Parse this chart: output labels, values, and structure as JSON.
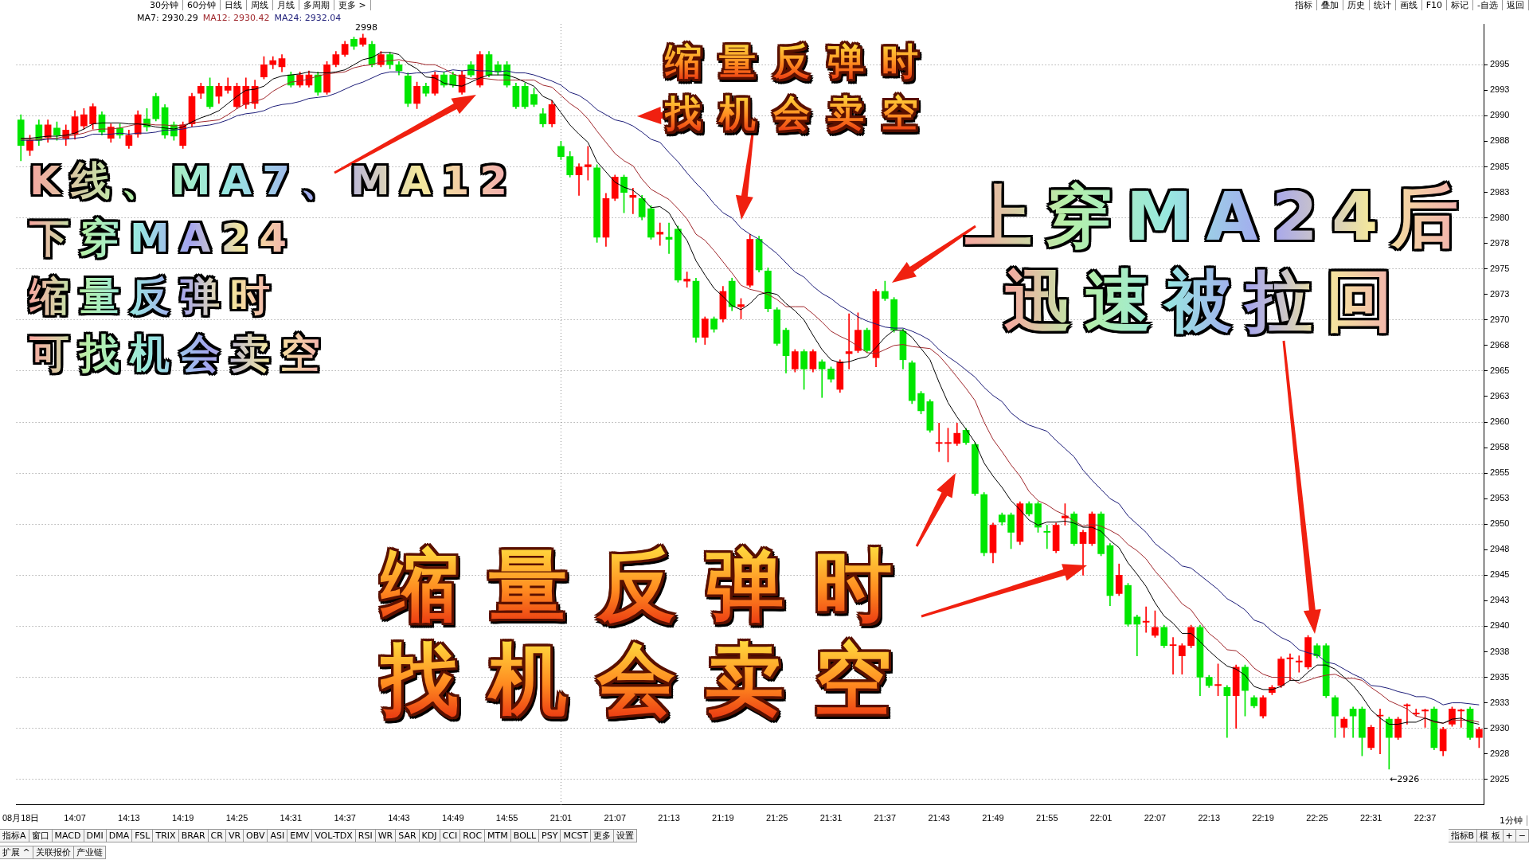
{
  "chart_data": {
    "type": "candlestick",
    "categories": [
      "08月18日",
      null,
      null,
      null,
      null,
      null,
      "14:07",
      null,
      null,
      null,
      null,
      null,
      "14:13",
      null,
      null,
      null,
      null,
      null,
      "14:19",
      null,
      null,
      null,
      null,
      null,
      "14:25",
      null,
      null,
      null,
      null,
      null,
      "14:31",
      null,
      null,
      null,
      null,
      null,
      "14:37",
      null,
      null,
      null,
      null,
      null,
      "14:43",
      null,
      null,
      null,
      null,
      null,
      "14:49",
      null,
      null,
      null,
      null,
      null,
      "14:55",
      null,
      null,
      null,
      null,
      null,
      "21:01",
      null,
      null,
      null,
      null,
      null,
      "21:07",
      null,
      null,
      null,
      null,
      null,
      "21:13",
      null,
      null,
      null,
      null,
      null,
      "21:19",
      null,
      null,
      null,
      null,
      null,
      "21:25",
      null,
      null,
      null,
      null,
      null,
      "21:31",
      null,
      null,
      null,
      null,
      null,
      "21:37",
      null,
      null,
      null,
      null,
      null,
      "21:43",
      null,
      null,
      null,
      null,
      null,
      "21:49",
      null,
      null,
      null,
      null,
      null,
      "21:55",
      null,
      null,
      null,
      null,
      null,
      "22:01",
      null,
      null,
      null,
      null,
      null,
      "22:07",
      null,
      null,
      null,
      null,
      null,
      "22:13",
      null,
      null,
      null,
      null,
      null,
      "22:19",
      null,
      null,
      null,
      null,
      null,
      "22:25",
      null,
      null,
      null,
      null,
      null,
      "22:31",
      null,
      null,
      null,
      null,
      null,
      "22:37",
      null,
      null,
      null,
      null,
      null,
      null
    ],
    "ohlc": [
      [
        2989.6,
        2990.1,
        2985.6,
        2987.1
      ],
      [
        2986.6,
        2988.1,
        2986.1,
        2987.6
      ],
      [
        2989.1,
        2989.6,
        2987.1,
        2987.6
      ],
      [
        2987.9,
        2989.6,
        2987.4,
        2989.1
      ],
      [
        2988.8,
        2989.4,
        2987.6,
        2988.1
      ],
      [
        2987.8,
        2989.1,
        2987.1,
        2988.6
      ],
      [
        2988.2,
        2990.5,
        2987.7,
        2989.9
      ],
      [
        2989.0,
        2990.7,
        2988.7,
        2990.1
      ],
      [
        2989.2,
        2991.2,
        2988.7,
        2990.9
      ],
      [
        2990.1,
        2990.4,
        2988.1,
        2988.4
      ],
      [
        2987.8,
        2989.2,
        2987.4,
        2988.9
      ],
      [
        2988.8,
        2989.2,
        2987.8,
        2988.1
      ],
      [
        2987.1,
        2988.6,
        2986.8,
        2988.1
      ],
      [
        2988.2,
        2990.5,
        2987.9,
        2990.1
      ],
      [
        2989.7,
        2990.7,
        2988.5,
        2988.9
      ],
      [
        2991.9,
        2992.2,
        2989.5,
        2989.7
      ],
      [
        2990.8,
        2991.1,
        2987.8,
        2988.1
      ],
      [
        2989.1,
        2989.4,
        2987.6,
        2988.0
      ],
      [
        2987.1,
        2989.4,
        2986.8,
        2989.1
      ],
      [
        2989.2,
        2992.2,
        2988.9,
        2991.9
      ],
      [
        2992.2,
        2993.2,
        2991.7,
        2992.9
      ],
      [
        2992.9,
        2993.7,
        2990.7,
        2990.9
      ],
      [
        2991.9,
        2993.2,
        2991.2,
        2992.9
      ],
      [
        2992.5,
        2993.7,
        2992.2,
        2992.9
      ],
      [
        2990.9,
        2993.2,
        2990.7,
        2992.9
      ],
      [
        2991.1,
        2993.7,
        2990.7,
        2992.9
      ],
      [
        2991.2,
        2993.5,
        2990.7,
        2992.9
      ],
      [
        2993.8,
        2995.8,
        2993.6,
        2995.0
      ],
      [
        2995.0,
        2995.8,
        2994.6,
        2995.4
      ],
      [
        2994.8,
        2996.0,
        2994.3,
        2995.6
      ],
      [
        2994.0,
        2994.3,
        2992.8,
        2993.0
      ],
      [
        2993.0,
        2994.3,
        2992.8,
        2994.0
      ],
      [
        2993.0,
        2994.4,
        2992.8,
        2994.0
      ],
      [
        2994.0,
        2994.3,
        2992.0,
        2992.3
      ],
      [
        2992.3,
        2995.3,
        2992.1,
        2995.0
      ],
      [
        2995.0,
        2996.3,
        2994.8,
        2996.0
      ],
      [
        2996.0,
        2997.3,
        2995.8,
        2997.0
      ],
      [
        2997.5,
        2997.7,
        2996.5,
        2996.8
      ],
      [
        2997.0,
        2998,
        2996.8,
        2997.6
      ],
      [
        2997.0,
        2997.3,
        2994.8,
        2995.0
      ],
      [
        2995.0,
        2996.3,
        2994.8,
        2996.0
      ],
      [
        2996.0,
        2996.2,
        2994.6,
        2995.0
      ],
      [
        2995.0,
        2995.3,
        2994.0,
        2994.4
      ],
      [
        2993.9,
        2994.2,
        2990.9,
        2991.2
      ],
      [
        2991.2,
        2993.3,
        2990.7,
        2992.9
      ],
      [
        2992.9,
        2993.2,
        2991.9,
        2992.2
      ],
      [
        2992.2,
        2994.3,
        2992.0,
        2994.0
      ],
      [
        2994.0,
        2994.3,
        2992.8,
        2993.0
      ],
      [
        2994.0,
        2994.3,
        2992.8,
        2993.0
      ],
      [
        2992.3,
        2994.4,
        2992.1,
        2994.0
      ],
      [
        2995.0,
        2995.3,
        2993.8,
        2994.0
      ],
      [
        2993.0,
        2996.3,
        2992.8,
        2996.0
      ],
      [
        2996.0,
        2996.3,
        2993.8,
        2994.0
      ],
      [
        2995.0,
        2995.3,
        2994.0,
        2994.3
      ],
      [
        2995.0,
        2995.3,
        2992.8,
        2993.0
      ],
      [
        2992.9,
        2993.2,
        2990.7,
        2990.9
      ],
      [
        2992.9,
        2993.2,
        2990.7,
        2990.9
      ],
      [
        2992.1,
        2992.7,
        2990.9,
        2991.1
      ],
      [
        2990.2,
        2990.7,
        2988.9,
        2989.2
      ],
      [
        2989.2,
        2991.5,
        2988.9,
        2991.1
      ],
      [
        2987.0,
        2987.5,
        2985.7,
        2986.0
      ],
      [
        2986.0,
        2986.5,
        2984.0,
        2984.2
      ],
      [
        2984.2,
        2985.3,
        2982.2,
        2985.0
      ],
      [
        2985.0,
        2987.0,
        2983.7,
        2985.2
      ],
      [
        2984.9,
        2985.2,
        2977.6,
        2978.1
      ],
      [
        2978.1,
        2982.4,
        2977.2,
        2981.9
      ],
      [
        2981.9,
        2984.2,
        2981.7,
        2984.0
      ],
      [
        2984.0,
        2984.2,
        2980.5,
        2982.5
      ],
      [
        2982.0,
        2982.9,
        2980.4,
        2982.2
      ],
      [
        2981.9,
        2982.2,
        2979.8,
        2980.1
      ],
      [
        2980.9,
        2981.2,
        2977.9,
        2978.1
      ],
      [
        2978.4,
        2979.5,
        2977.3,
        2978.6
      ],
      [
        2978.1,
        2979.5,
        2976.5,
        2977.9
      ],
      [
        2978.9,
        2979.2,
        2973.7,
        2973.9
      ],
      [
        2973.8,
        2974.7,
        2973.2,
        2974.0
      ],
      [
        2973.8,
        2974.1,
        2967.8,
        2968.3
      ],
      [
        2968.3,
        2970.3,
        2967.6,
        2970.1
      ],
      [
        2970.1,
        2970.3,
        2968.8,
        2969.1
      ],
      [
        2970.1,
        2973.3,
        2969.8,
        2972.8
      ],
      [
        2973.8,
        2974.1,
        2970.9,
        2971.3
      ],
      [
        2971.3,
        2972.1,
        2970.1,
        2971.5
      ],
      [
        2973.4,
        2978.4,
        2973.2,
        2977.9
      ],
      [
        2977.9,
        2978.2,
        2974.7,
        2974.9
      ],
      [
        2974.8,
        2975.1,
        2970.8,
        2971.1
      ],
      [
        2971.0,
        2971.2,
        2967.5,
        2967.7
      ],
      [
        2969.0,
        2969.2,
        2964.8,
        2966.5
      ],
      [
        2965.2,
        2967.1,
        2964.9,
        2966.9
      ],
      [
        2966.9,
        2967.1,
        2963.2,
        2965.2
      ],
      [
        2965.2,
        2967.1,
        2964.9,
        2966.9
      ],
      [
        2965.9,
        2966.1,
        2962.4,
        2965.2
      ],
      [
        2965.2,
        2965.4,
        2963.9,
        2964.2
      ],
      [
        2963.2,
        2966.1,
        2962.9,
        2965.9
      ],
      [
        2966.7,
        2970.6,
        2965.2,
        2966.9
      ],
      [
        2967.0,
        2970.7,
        2966.8,
        2969.0
      ],
      [
        2969.0,
        2969.2,
        2966.8,
        2967.0
      ],
      [
        2966.3,
        2973.0,
        2965.4,
        2972.8
      ],
      [
        2972.8,
        2973.8,
        2971.9,
        2972.1
      ],
      [
        2972.0,
        2972.2,
        2968.8,
        2969.0
      ],
      [
        2968.9,
        2969.1,
        2965.2,
        2966.1
      ],
      [
        2965.8,
        2966.0,
        2961.8,
        2962.1
      ],
      [
        2962.8,
        2963.0,
        2960.8,
        2961.1
      ],
      [
        2962.0,
        2962.2,
        2959.0,
        2959.2
      ],
      [
        2957.9,
        2959.9,
        2957.1,
        2958.0
      ],
      [
        2957.9,
        2959.4,
        2956.1,
        2958.0
      ],
      [
        2957.9,
        2959.9,
        2957.7,
        2958.9
      ],
      [
        2959.2,
        2959.4,
        2957.8,
        2958.0
      ],
      [
        2957.8,
        2958.0,
        2952.8,
        2953.0
      ],
      [
        2952.9,
        2953.1,
        2946.9,
        2947.2
      ],
      [
        2947.2,
        2950.1,
        2946.2,
        2949.9
      ],
      [
        2950.9,
        2951.1,
        2949.9,
        2950.2
      ],
      [
        2950.9,
        2951.1,
        2947.6,
        2949.2
      ],
      [
        2948.3,
        2952.2,
        2948.0,
        2952.0
      ],
      [
        2952.0,
        2952.2,
        2950.8,
        2951.0
      ],
      [
        2952.0,
        2952.2,
        2949.2,
        2949.7
      ],
      [
        2949.3,
        2949.9,
        2947.6,
        2949.2
      ],
      [
        2947.4,
        2950.1,
        2947.2,
        2949.9
      ],
      [
        2950.6,
        2952.0,
        2949.9,
        2950.8
      ],
      [
        2951.0,
        2951.2,
        2947.9,
        2948.1
      ],
      [
        2948.1,
        2949.4,
        2945.0,
        2949.2
      ],
      [
        2948.1,
        2951.2,
        2947.9,
        2951.0
      ],
      [
        2951.0,
        2951.2,
        2946.9,
        2947.1
      ],
      [
        2947.9,
        2948.1,
        2942.0,
        2943.0
      ],
      [
        2943.2,
        2946.1,
        2943.0,
        2945.0
      ],
      [
        2944.0,
        2944.2,
        2940.0,
        2940.2
      ],
      [
        2940.9,
        2941.1,
        2937.1,
        2940.2
      ],
      [
        2940.4,
        2941.9,
        2939.4,
        2940.5
      ],
      [
        2939.1,
        2941.5,
        2938.9,
        2939.9
      ],
      [
        2939.9,
        2940.1,
        2937.9,
        2938.1
      ],
      [
        2938.1,
        2938.9,
        2935.3,
        2938.2
      ],
      [
        2937.1,
        2938.3,
        2935.3,
        2938.1
      ],
      [
        2938.1,
        2940.1,
        2937.9,
        2939.9
      ],
      [
        2939.9,
        2940.1,
        2933.2,
        2935.0
      ],
      [
        2935.0,
        2935.2,
        2934.0,
        2934.2
      ],
      [
        2934.2,
        2936.3,
        2933.2,
        2934.3
      ],
      [
        2934.0,
        2934.2,
        2929.1,
        2933.2
      ],
      [
        2933.2,
        2936.2,
        2930.0,
        2936.0
      ],
      [
        2936.0,
        2936.2,
        2931.2,
        2933.7
      ],
      [
        2933.0,
        2933.2,
        2932.0,
        2932.2
      ],
      [
        2931.2,
        2933.2,
        2931.0,
        2933.0
      ],
      [
        2933.5,
        2934.2,
        2933.3,
        2934.0
      ],
      [
        2934.2,
        2937.0,
        2934.0,
        2936.8
      ],
      [
        2936.8,
        2937.3,
        2934.7,
        2936.9
      ],
      [
        2936.5,
        2937.1,
        2935.5,
        2936.6
      ],
      [
        2936.0,
        2939.1,
        2935.8,
        2938.9
      ],
      [
        2938.1,
        2938.3,
        2936.9,
        2937.1
      ],
      [
        2938.1,
        2938.3,
        2933.0,
        2933.2
      ],
      [
        2933.0,
        2933.2,
        2929.1,
        2931.2
      ],
      [
        2930.1,
        2931.1,
        2929.1,
        2930.9
      ],
      [
        2931.9,
        2932.1,
        2929.1,
        2931.2
      ],
      [
        2931.9,
        2932.1,
        2927.3,
        2929.1
      ],
      [
        2928.1,
        2930.3,
        2927.9,
        2930.1
      ],
      [
        2931.2,
        2931.9,
        2927.5,
        2931.3
      ],
      [
        2930.9,
        2931.1,
        2926.0,
        2929.1
      ],
      [
        2929.1,
        2931.1,
        2928.9,
        2930.9
      ],
      [
        2932.2,
        2932.4,
        2930.4,
        2932.3
      ],
      [
        2931.4,
        2931.9,
        2931.2,
        2931.5
      ],
      [
        2931.7,
        2931.9,
        2930.1,
        2931.8
      ],
      [
        2931.9,
        2932.1,
        2927.9,
        2928.1
      ],
      [
        2927.8,
        2930.1,
        2927.3,
        2929.9
      ],
      [
        2930.4,
        2932.1,
        2930.2,
        2931.9
      ],
      [
        2931.7,
        2931.9,
        2930.1,
        2931.8
      ],
      [
        2931.9,
        2932.1,
        2928.9,
        2929.1
      ],
      [
        2929.1,
        2930.1,
        2928.1,
        2929.9
      ]
    ],
    "colors": [
      "#00e600",
      "#ff0000",
      "#00e600",
      "#ff0000",
      "#00e600",
      "#ff0000",
      "#ff0000",
      "#ff0000",
      "#ff0000",
      "#00e600",
      "#ff0000",
      "#00e600",
      "#ff0000",
      "#ff0000",
      "#00e600",
      "#00e600",
      "#00e600",
      "#00e600",
      "#ff0000",
      "#ff0000",
      "#ff0000",
      "#00e600",
      "#ff0000",
      "#ff0000",
      "#ff0000",
      "#ff0000",
      "#ff0000",
      "#ff0000",
      "#ff0000",
      "#ff0000",
      "#00e600",
      "#ff0000",
      "#ff0000",
      "#00e600",
      "#ff0000",
      "#ff0000",
      "#ff0000",
      "#00e600",
      "#ff0000",
      "#00e600",
      "#ff0000",
      "#00e600",
      "#00e600",
      "#00e600",
      "#ff0000",
      "#00e600",
      "#ff0000",
      "#00e600",
      "#00e600",
      "#ff0000",
      "#00e600",
      "#ff0000",
      "#00e600",
      "#00e600",
      "#00e600",
      "#00e600",
      "#00e600",
      "#00e600",
      "#00e600",
      "#ff0000",
      "#00e600",
      "#00e600",
      "#ff0000",
      "#ff0000",
      "#00e600",
      "#ff0000",
      "#ff0000",
      "#00e600",
      "#ff0000",
      "#00e600",
      "#00e600",
      "#ff0000",
      "#00e600",
      "#00e600",
      "#ff0000",
      "#00e600",
      "#ff0000",
      "#00e600",
      "#ff0000",
      "#00e600",
      "#ff0000",
      "#ff0000",
      "#00e600",
      "#00e600",
      "#00e600",
      "#00e600",
      "#ff0000",
      "#00e600",
      "#ff0000",
      "#00e600",
      "#00e600",
      "#ff0000",
      "#ff0000",
      "#ff0000",
      "#00e600",
      "#ff0000",
      "#00e600",
      "#00e600",
      "#00e600",
      "#00e600",
      "#00e600",
      "#00e600",
      "#ff0000",
      "#ff0000",
      "#ff0000",
      "#00e600",
      "#00e600",
      "#00e600",
      "#ff0000",
      "#00e600",
      "#00e600",
      "#ff0000",
      "#00e600",
      "#00e600",
      "#00e600",
      "#ff0000",
      "#ff0000",
      "#00e600",
      "#ff0000",
      "#ff0000",
      "#00e600",
      "#00e600",
      "#ff0000",
      "#00e600",
      "#00e600",
      "#ff0000",
      "#ff0000",
      "#00e600",
      "#ff0000",
      "#ff0000",
      "#ff0000",
      "#00e600",
      "#00e600",
      "#ff0000",
      "#00e600",
      "#ff0000",
      "#00e600",
      "#00e600",
      "#ff0000",
      "#ff0000",
      "#ff0000",
      "#ff0000",
      "#ff0000",
      "#ff0000",
      "#00e600",
      "#00e600",
      "#00e600",
      "#ff0000",
      "#00e600",
      "#00e600",
      "#ff0000",
      "#ff0000",
      "#00e600",
      "#ff0000",
      "#ff0000",
      "#ff0000",
      "#ff0000",
      "#00e600",
      "#ff0000",
      "#ff0000",
      "#ff0000",
      "#00e600",
      "#ff0000"
    ],
    "series": [
      {
        "type": "line",
        "name": "MA7: 2930.29",
        "color": "#000000",
        "values": [
          2987.8,
          2987.8,
          2987.9,
          2988.0,
          2988.0,
          2988.1,
          2988.3,
          2988.7,
          2989.2,
          2989.3,
          2989.3,
          2989.3,
          2989.2,
          2989.2,
          2989.1,
          2988.9,
          2988.8,
          2988.7,
          2988.9,
          2989.4,
          2989.8,
          2990.1,
          2990.5,
          2991.2,
          2991.9,
          2992.5,
          2992.6,
          2992.9,
          2993.6,
          2993.9,
          2994.0,
          2994.1,
          2994.3,
          2994.2,
          2994.2,
          2994.3,
          2994.5,
          2995.0,
          2995.5,
          2995.7,
          2996.2,
          2996.2,
          2996.0,
          2995.1,
          2994.6,
          2993.8,
          2993.7,
          2993.2,
          2993.0,
          2992.9,
          2993.3,
          2993.7,
          2994.0,
          2994.0,
          2994.0,
          2993.7,
          2993.3,
          2992.9,
          2991.9,
          2991.5,
          2990.3,
          2989.1,
          2988.2,
          2987.4,
          2985.5,
          2984.5,
          2983.5,
          2983.0,
          2982.7,
          2982.0,
          2981.0,
          2981.1,
          2980.5,
          2979.0,
          2977.8,
          2975.8,
          2974.4,
          2973.1,
          2972.3,
          2971.4,
          2971.0,
          2971.6,
          2972.5,
          2972.7,
          2972.5,
          2971.6,
          2970.9,
          2970.0,
          2968.5,
          2967.1,
          2966.1,
          2965.8,
          2965.9,
          2966.2,
          2966.4,
          2967.3,
          2968.3,
          2969.0,
          2969.0,
          2968.3,
          2967.2,
          2966.1,
          2963.9,
          2961.9,
          2960.5,
          2959.3,
          2958.0,
          2956.0,
          2954.7,
          2953.6,
          2952.3,
          2951.4,
          2950.4,
          2949.9,
          2950.2,
          2950.2,
          2950.3,
          2950.1,
          2949.7,
          2949.7,
          2949.3,
          2948.4,
          2947.7,
          2946.2,
          2945.1,
          2943.9,
          2942.3,
          2941.0,
          2940.3,
          2939.3,
          2939.3,
          2938.5,
          2937.6,
          2936.8,
          2936.1,
          2935.8,
          2935.2,
          2934.1,
          2933.8,
          2933.8,
          2934.1,
          2934.7,
          2934.7,
          2935.5,
          2936.2,
          2936.2,
          2935.8,
          2935.0,
          2934.2,
          2933.1,
          2931.8,
          2931.0,
          2930.4,
          2930.4,
          2930.6,
          2930.6,
          2931.0,
          2930.7,
          2930.5,
          2930.9,
          2931.0,
          2930.6,
          2930.4
        ]
      },
      {
        "type": "line",
        "name": "MA12: 2930.42",
        "color": "#a0282d",
        "values": [
          2987.7,
          2987.7,
          2987.7,
          2987.8,
          2987.8,
          2988.0,
          2988.1,
          2988.3,
          2988.6,
          2988.7,
          2988.7,
          2988.8,
          2989.0,
          2989.2,
          2989.2,
          2989.1,
          2989.1,
          2989.0,
          2989.1,
          2989.3,
          2989.4,
          2989.5,
          2989.6,
          2990.1,
          2990.7,
          2991.2,
          2991.4,
          2991.7,
          2992.4,
          2992.9,
          2993.3,
          2993.4,
          2993.6,
          2993.9,
          2994.1,
          2994.2,
          2994.3,
          2994.7,
          2994.9,
          2995.0,
          2995.3,
          2995.4,
          2995.5,
          2995.3,
          2995.2,
          2995.0,
          2995.0,
          2994.6,
          2994.1,
          2993.8,
          2993.6,
          2993.7,
          2993.6,
          2993.5,
          2993.5,
          2993.5,
          2993.5,
          2993.5,
          2993.0,
          2992.8,
          2992.0,
          2991.2,
          2990.6,
          2989.7,
          2988.5,
          2987.4,
          2986.3,
          2985.6,
          2985.1,
          2983.8,
          2982.8,
          2982.3,
          2981.8,
          2980.9,
          2979.9,
          2978.4,
          2977.8,
          2976.8,
          2975.7,
          2974.6,
          2973.4,
          2973.0,
          2972.8,
          2972.5,
          2972.0,
          2971.3,
          2971.3,
          2971.3,
          2970.6,
          2969.8,
          2968.9,
          2968.4,
          2968.0,
          2967.4,
          2966.8,
          2966.7,
          2967.1,
          2967.5,
          2967.6,
          2967.4,
          2967.3,
          2967.2,
          2966.5,
          2965.5,
          2964.4,
          2963.3,
          2962.1,
          2960.0,
          2958.3,
          2957.1,
          2955.8,
          2954.7,
          2953.2,
          2952.3,
          2951.9,
          2951.3,
          2950.9,
          2950.3,
          2949.8,
          2950.0,
          2949.8,
          2949.4,
          2948.9,
          2948.0,
          2947.4,
          2946.6,
          2945.4,
          2944.4,
          2943.3,
          2942.2,
          2941.6,
          2940.4,
          2939.3,
          2938.6,
          2937.7,
          2937.6,
          2936.9,
          2935.9,
          2935.3,
          2935.0,
          2935.0,
          2935.0,
          2934.4,
          2934.7,
          2935.0,
          2935.2,
          2935.3,
          2934.9,
          2934.9,
          2934.7,
          2934.0,
          2933.4,
          2932.7,
          2932.3,
          2931.9,
          2931.2,
          2931.0,
          2930.6,
          2930.5,
          2930.8,
          2930.8,
          2930.8,
          2930.6
        ]
      },
      {
        "type": "line",
        "name": "MA24: 2932.04",
        "color": "#1c1c78",
        "values": [
          2987.6,
          2987.6,
          2987.6,
          2987.7,
          2987.7,
          2987.7,
          2987.8,
          2987.9,
          2988.2,
          2988.2,
          2988.2,
          2988.3,
          2988.2,
          2988.3,
          2988.3,
          2988.4,
          2988.6,
          2988.6,
          2988.7,
          2988.9,
          2989.0,
          2989.1,
          2989.3,
          2989.6,
          2990.0,
          2990.2,
          2990.3,
          2990.5,
          2990.9,
          2991.1,
          2991.2,
          2991.4,
          2991.7,
          2991.8,
          2991.9,
          2992.2,
          2992.6,
          2993.0,
          2993.3,
          2993.7,
          2994.1,
          2994.3,
          2994.3,
          2994.1,
          2994.2,
          2994.2,
          2994.4,
          2994.3,
          2994.5,
          2994.4,
          2994.5,
          2994.4,
          2994.4,
          2994.3,
          2994.4,
          2994.2,
          2994.2,
          2994.0,
          2993.7,
          2993.4,
          2993.0,
          2992.3,
          2992.0,
          2991.4,
          2990.6,
          2990.1,
          2989.6,
          2989.4,
          2989.0,
          2988.4,
          2987.7,
          2987.4,
          2986.4,
          2985.5,
          2984.4,
          2983.4,
          2982.5,
          2981.4,
          2980.5,
          2980.0,
          2979.0,
          2978.4,
          2977.9,
          2977.2,
          2976.5,
          2975.6,
          2974.7,
          2974.2,
          2973.3,
          2972.6,
          2972.1,
          2971.4,
          2970.9,
          2970.3,
          2969.9,
          2969.6,
          2969.3,
          2969.2,
          2969.2,
          2968.9,
          2968.5,
          2968.0,
          2967.1,
          2966.4,
          2965.8,
          2965.1,
          2964.4,
          2963.4,
          2962.6,
          2962.0,
          2960.9,
          2960.2,
          2959.7,
          2959.4,
          2959.1,
          2958.2,
          2957.4,
          2956.6,
          2955.3,
          2954.3,
          2953.4,
          2952.5,
          2952.0,
          2950.8,
          2950.0,
          2949.2,
          2948.1,
          2947.4,
          2946.7,
          2945.9,
          2945.7,
          2945.0,
          2944.3,
          2943.6,
          2942.7,
          2942.2,
          2941.6,
          2940.6,
          2940.3,
          2939.5,
          2938.9,
          2938.5,
          2937.7,
          2937.4,
          2937.2,
          2936.5,
          2936.3,
          2935.8,
          2935.3,
          2934.9,
          2934.2,
          2934.1,
          2933.9,
          2933.6,
          2933.4,
          2933.1,
          2933.1,
          2932.8,
          2932.3,
          2932.5,
          2932.5,
          2932.4,
          2932.3
        ]
      }
    ],
    "ylim": [
      2922.5,
      2999
    ],
    "yticks": [
      2925,
      {
        "value": 2927.5,
        "label": "2928"
      },
      2930,
      {
        "value": 2932.5,
        "label": "2933"
      },
      2935,
      {
        "value": 2937.5,
        "label": "2938"
      },
      2940,
      {
        "value": 2942.5,
        "label": "2943"
      },
      2945,
      {
        "value": 2947.5,
        "label": "2948"
      },
      2950,
      {
        "value": 2952.5,
        "label": "2953"
      },
      2955,
      {
        "value": 2957.5,
        "label": "2958"
      },
      2960,
      {
        "value": 2962.5,
        "label": "2963"
      },
      2965,
      {
        "value": 2967.5,
        "label": "2968"
      },
      2970,
      {
        "value": 2972.5,
        "label": "2973"
      },
      2975,
      {
        "value": 2977.5,
        "label": "2978"
      },
      2980,
      {
        "value": 2982.5,
        "label": "2983"
      },
      2985,
      {
        "value": 2987.5,
        "label": "2988"
      },
      2990,
      {
        "value": 2992.5,
        "label": "2993"
      },
      2995
    ],
    "grid": "y",
    "legend": "top left",
    "ref_lines": [
      {
        "axis": "x",
        "value": "21:01",
        "color": "#909090",
        "line_style": "dotted"
      }
    ],
    "annotations": [
      "K线、MA7、MA12",
      "下穿MA24",
      "缩量反弹时",
      "可找机会卖空",
      "缩量反弹时",
      "找机会卖空",
      "上穿MA24后",
      "迅速被拉回",
      "缩量反弹时",
      "找机会卖空",
      "2998",
      "←2926",
      "30分钟",
      "60分钟",
      "日线",
      "周线",
      "月线",
      "多周期",
      "更多 >",
      "指标",
      "叠加",
      "历史",
      "统计",
      "画线",
      "F10",
      "标记",
      "-自选",
      "返回",
      "指标A",
      "窗口",
      "MACD",
      "DMI",
      "DMA",
      "FSL",
      "TRIX",
      "BRAR",
      "CR",
      "VR",
      "OBV",
      "ASI",
      "EMV",
      "VOL-TDX",
      "RSI",
      "WR",
      "SAR",
      "KDJ",
      "CCI",
      "ROC",
      "MTM",
      "BOLL",
      "PSY",
      "MCST",
      "更多",
      "设置",
      "扩展 ^",
      "关联报价",
      "产业链",
      "指标B",
      "模 板",
      "+",
      "−",
      "1分钟"
    ]
  }
}
